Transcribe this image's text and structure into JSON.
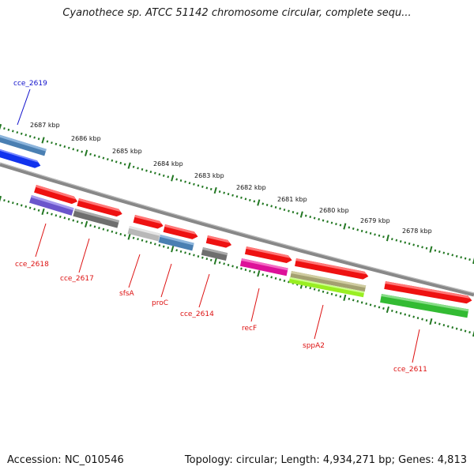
{
  "title": "Cyanothece sp. ATCC 51142 chromosome circular, complete sequ...",
  "footer": {
    "accession": "Accession: NC_010546",
    "summary": "Topology: circular; Length: 4,934,271 bp; Genes: 4,813"
  },
  "ticks": [
    "2687 kbp",
    "2686 kbp",
    "2685 kbp",
    "2684 kbp",
    "2683 kbp",
    "2682 kbp",
    "2681 kbp",
    "2680 kbp",
    "2679 kbp",
    "2678 kbp"
  ],
  "colors": {
    "red": "#ee1111",
    "blue": "#1133ee",
    "steel": "#4a7fb2",
    "purple": "#6a55cc",
    "gray": "#6e6e6e",
    "lightgray": "#b8b8b8",
    "magenta": "#dd1199",
    "olive": "#a3a070",
    "lime": "#99ee22",
    "green": "#33bb33",
    "tick_green": "#227722",
    "backbone": "#888888"
  },
  "gene_labels": [
    {
      "text": "cce_2619",
      "color": "#1111cc"
    },
    {
      "text": "cce_2618",
      "color": "#dd1111"
    },
    {
      "text": "cce_2617",
      "color": "#dd1111"
    },
    {
      "text": "sfsA",
      "color": "#dd1111"
    },
    {
      "text": "proC",
      "color": "#dd1111"
    },
    {
      "text": "cce_2614",
      "color": "#dd1111"
    },
    {
      "text": "recF",
      "color": "#dd1111"
    },
    {
      "text": "sppA2",
      "color": "#dd1111"
    },
    {
      "text": "cce_2611",
      "color": "#dd1111"
    }
  ]
}
